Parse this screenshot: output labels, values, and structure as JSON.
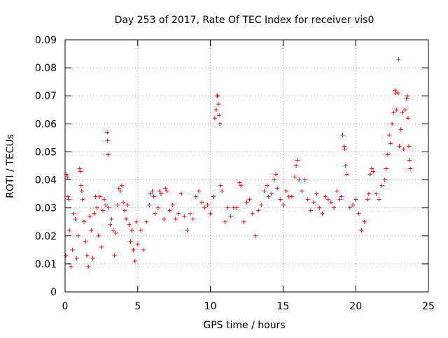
{
  "chart_data": {
    "type": "scatter",
    "title": "Day 253 of 2017, Rate Of TEC Index for receiver vis0",
    "xlabel": "GPS time / hours",
    "ylabel": "ROTI / TECUs",
    "xlim": [
      0,
      25
    ],
    "ylim": [
      0,
      0.09
    ],
    "x_ticks": [
      0,
      5,
      10,
      15,
      20,
      25
    ],
    "y_ticks": [
      0,
      0.01,
      0.02,
      0.03,
      0.04,
      0.05,
      0.06,
      0.07,
      0.08,
      0.09
    ],
    "x_tick_labels": [
      "0",
      "5",
      "10",
      "15",
      "20",
      "25"
    ],
    "y_tick_labels": [
      "0",
      "0.01",
      "0.02",
      "0.03",
      "0.04",
      "0.05",
      "0.06",
      "0.07",
      "0.08",
      "0.09"
    ],
    "grid": true,
    "marker": "+",
    "marker_color": "#ff0000",
    "series": [
      {
        "name": "",
        "points": [
          [
            0.05,
            0.013
          ],
          [
            0.1,
            0.042
          ],
          [
            0.15,
            0.041
          ],
          [
            0.2,
            0.034
          ],
          [
            0.25,
            0.033
          ],
          [
            0.3,
            0.022
          ],
          [
            0.4,
            0.009
          ],
          [
            0.5,
            0.015
          ],
          [
            0.6,
            0.028
          ],
          [
            0.7,
            0.026
          ],
          [
            0.8,
            0.012
          ],
          [
            0.9,
            0.02
          ],
          [
            1.0,
            0.044
          ],
          [
            1.05,
            0.043
          ],
          [
            1.1,
            0.038
          ],
          [
            1.15,
            0.036
          ],
          [
            1.2,
            0.033
          ],
          [
            1.3,
            0.025
          ],
          [
            1.4,
            0.018
          ],
          [
            1.5,
            0.013
          ],
          [
            1.6,
            0.009
          ],
          [
            1.7,
            0.027
          ],
          [
            1.8,
            0.022
          ],
          [
            1.9,
            0.012
          ],
          [
            2.0,
            0.028
          ],
          [
            2.1,
            0.034
          ],
          [
            2.2,
            0.03
          ],
          [
            2.3,
            0.02
          ],
          [
            2.4,
            0.034
          ],
          [
            2.5,
            0.016
          ],
          [
            2.6,
            0.029
          ],
          [
            2.7,
            0.033
          ],
          [
            2.8,
            0.031
          ],
          [
            2.9,
            0.057
          ],
          [
            2.92,
            0.054
          ],
          [
            2.95,
            0.049
          ],
          [
            3.0,
            0.03
          ],
          [
            3.1,
            0.024
          ],
          [
            3.2,
            0.026
          ],
          [
            3.3,
            0.022
          ],
          [
            3.4,
            0.013
          ],
          [
            3.5,
            0.021
          ],
          [
            3.6,
            0.031
          ],
          [
            3.7,
            0.037
          ],
          [
            3.8,
            0.036
          ],
          [
            3.9,
            0.038
          ],
          [
            4.0,
            0.032
          ],
          [
            4.1,
            0.029
          ],
          [
            4.2,
            0.026
          ],
          [
            4.3,
            0.031
          ],
          [
            4.4,
            0.024
          ],
          [
            4.5,
            0.018
          ],
          [
            4.6,
            0.022
          ],
          [
            4.7,
            0.015
          ],
          [
            4.8,
            0.011
          ],
          [
            4.9,
            0.025
          ],
          [
            5.0,
            0.017
          ],
          [
            5.2,
            0.022
          ],
          [
            5.4,
            0.015
          ],
          [
            5.6,
            0.025
          ],
          [
            5.8,
            0.031
          ],
          [
            5.9,
            0.035
          ],
          [
            6.0,
            0.036
          ],
          [
            6.1,
            0.034
          ],
          [
            6.2,
            0.028
          ],
          [
            6.4,
            0.03
          ],
          [
            6.5,
            0.036
          ],
          [
            6.6,
            0.035
          ],
          [
            6.8,
            0.026
          ],
          [
            6.9,
            0.037
          ],
          [
            7.0,
            0.036
          ],
          [
            7.2,
            0.029
          ],
          [
            7.4,
            0.031
          ],
          [
            7.6,
            0.026
          ],
          [
            7.8,
            0.028
          ],
          [
            8.0,
            0.035
          ],
          [
            8.2,
            0.027
          ],
          [
            8.4,
            0.022
          ],
          [
            8.6,
            0.028
          ],
          [
            8.8,
            0.026
          ],
          [
            9.0,
            0.034
          ],
          [
            9.2,
            0.036
          ],
          [
            9.4,
            0.032
          ],
          [
            9.6,
            0.03
          ],
          [
            9.8,
            0.031
          ],
          [
            10.0,
            0.028
          ],
          [
            10.2,
            0.034
          ],
          [
            10.3,
            0.062
          ],
          [
            10.4,
            0.065
          ],
          [
            10.45,
            0.07
          ],
          [
            10.5,
            0.07
          ],
          [
            10.55,
            0.067
          ],
          [
            10.6,
            0.063
          ],
          [
            10.65,
            0.06
          ],
          [
            10.7,
            0.038
          ],
          [
            10.8,
            0.036
          ],
          [
            11.0,
            0.025
          ],
          [
            11.2,
            0.03
          ],
          [
            11.4,
            0.027
          ],
          [
            11.6,
            0.03
          ],
          [
            11.8,
            0.03
          ],
          [
            12.0,
            0.039
          ],
          [
            12.1,
            0.038
          ],
          [
            12.3,
            0.025
          ],
          [
            12.5,
            0.032
          ],
          [
            12.7,
            0.033
          ],
          [
            12.9,
            0.028
          ],
          [
            13.1,
            0.02
          ],
          [
            13.3,
            0.029
          ],
          [
            13.5,
            0.031
          ],
          [
            13.7,
            0.036
          ],
          [
            13.9,
            0.038
          ],
          [
            14.0,
            0.034
          ],
          [
            14.2,
            0.035
          ],
          [
            14.4,
            0.04
          ],
          [
            14.5,
            0.042
          ],
          [
            14.6,
            0.037
          ],
          [
            14.8,
            0.033
          ],
          [
            15.0,
            0.031
          ],
          [
            15.2,
            0.036
          ],
          [
            15.4,
            0.034
          ],
          [
            15.6,
            0.034
          ],
          [
            15.8,
            0.041
          ],
          [
            15.9,
            0.045
          ],
          [
            16.0,
            0.047
          ],
          [
            16.1,
            0.04
          ],
          [
            16.3,
            0.036
          ],
          [
            16.5,
            0.04
          ],
          [
            16.7,
            0.033
          ],
          [
            16.9,
            0.029
          ],
          [
            17.1,
            0.032
          ],
          [
            17.3,
            0.035
          ],
          [
            17.5,
            0.03
          ],
          [
            17.7,
            0.028
          ],
          [
            17.9,
            0.034
          ],
          [
            18.1,
            0.033
          ],
          [
            18.3,
            0.032
          ],
          [
            18.5,
            0.03
          ],
          [
            18.7,
            0.036
          ],
          [
            18.9,
            0.033
          ],
          [
            19.0,
            0.034
          ],
          [
            19.1,
            0.056
          ],
          [
            19.2,
            0.052
          ],
          [
            19.25,
            0.051
          ],
          [
            19.3,
            0.045
          ],
          [
            19.4,
            0.042
          ],
          [
            19.6,
            0.03
          ],
          [
            19.8,
            0.031
          ],
          [
            20.0,
            0.033
          ],
          [
            20.2,
            0.028
          ],
          [
            20.4,
            0.022
          ],
          [
            20.6,
            0.025
          ],
          [
            20.8,
            0.033
          ],
          [
            20.9,
            0.035
          ],
          [
            21.0,
            0.042
          ],
          [
            21.1,
            0.044
          ],
          [
            21.2,
            0.043
          ],
          [
            21.4,
            0.035
          ],
          [
            21.6,
            0.033
          ],
          [
            21.8,
            0.038
          ],
          [
            22.0,
            0.04
          ],
          [
            22.1,
            0.044
          ],
          [
            22.2,
            0.049
          ],
          [
            22.3,
            0.056
          ],
          [
            22.4,
            0.053
          ],
          [
            22.5,
            0.06
          ],
          [
            22.6,
            0.064
          ],
          [
            22.7,
            0.072
          ],
          [
            22.75,
            0.071
          ],
          [
            22.8,
            0.065
          ],
          [
            22.9,
            0.071
          ],
          [
            22.95,
            0.083
          ],
          [
            23.0,
            0.052
          ],
          [
            23.1,
            0.058
          ],
          [
            23.2,
            0.064
          ],
          [
            23.3,
            0.051
          ],
          [
            23.4,
            0.065
          ],
          [
            23.5,
            0.069
          ],
          [
            23.55,
            0.07
          ],
          [
            23.6,
            0.062
          ],
          [
            23.65,
            0.052
          ],
          [
            23.7,
            0.047
          ],
          [
            23.75,
            0.044
          ]
        ]
      }
    ]
  }
}
